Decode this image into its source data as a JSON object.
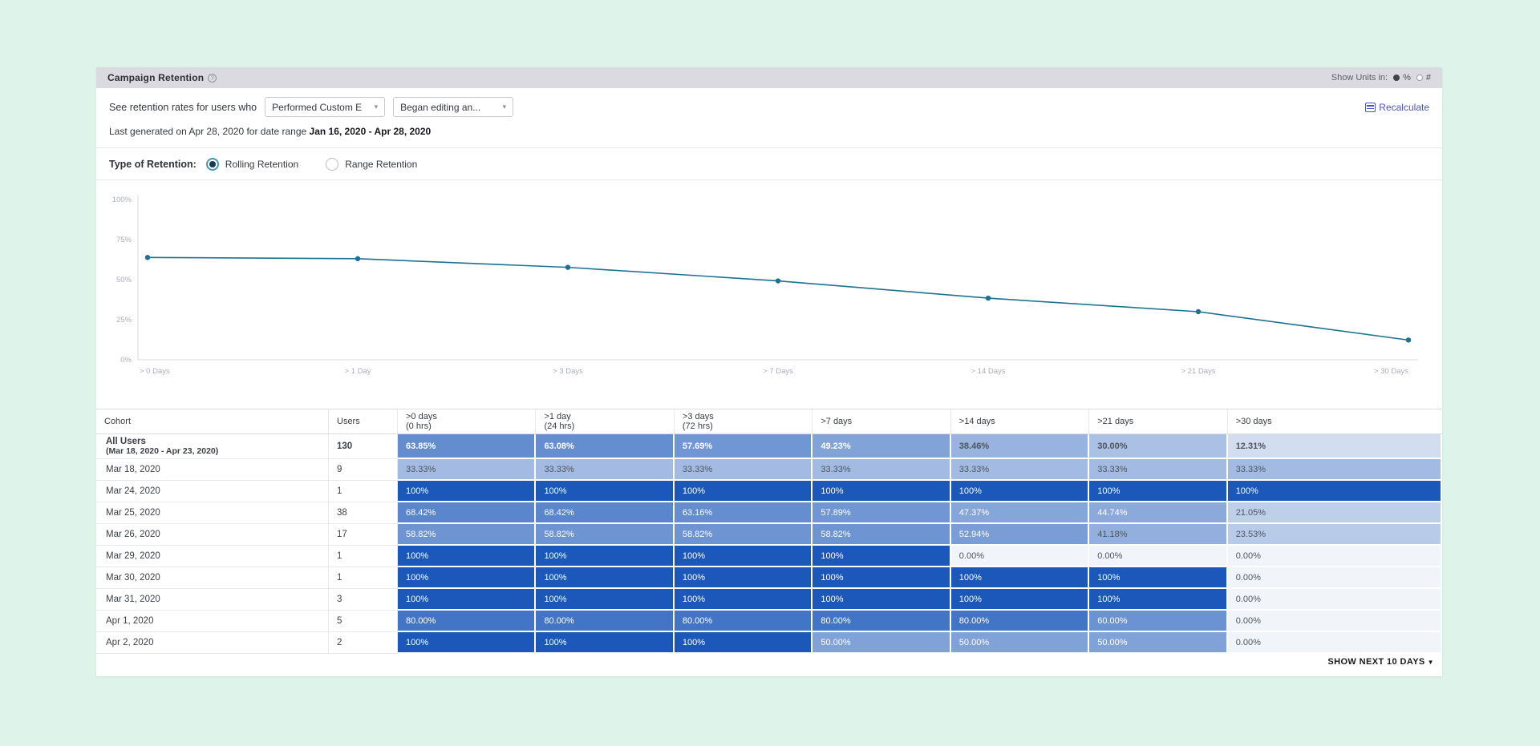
{
  "header": {
    "title": "Campaign Retention",
    "show_units_label": "Show Units in:",
    "unit_options": [
      {
        "label": "%",
        "selected": true
      },
      {
        "label": "#",
        "selected": false
      }
    ]
  },
  "filters": {
    "prefix": "See retention rates for users who",
    "dropdown1_value": "Performed Custom E",
    "dropdown2_value": "Began editing an...",
    "recalculate_label": "Recalculate",
    "last_generated_prefix": "Last generated on Apr 28, 2020 for date range",
    "date_range": "Jan 16, 2020 - Apr 28, 2020"
  },
  "retention_type": {
    "label": "Type of Retention:",
    "options": [
      {
        "label": "Rolling Retention",
        "selected": true
      },
      {
        "label": "Range Retention",
        "selected": false
      }
    ]
  },
  "chart_data": {
    "type": "line",
    "x": [
      "> 0 Days",
      "> 1 Day",
      "> 3 Days",
      "> 7 Days",
      "> 14 Days",
      "> 21 Days",
      "> 30 Days"
    ],
    "values": [
      63.85,
      63.08,
      57.69,
      49.23,
      38.46,
      30.0,
      12.31
    ],
    "title": "",
    "xlabel": "",
    "ylabel": "",
    "ylim": [
      0,
      100
    ],
    "yticks": [
      0,
      25,
      50,
      75,
      100
    ],
    "ytick_labels": [
      "0%",
      "25%",
      "50%",
      "75%",
      "100%"
    ],
    "line_color": "#1d7191",
    "axis_color": "#d8dadd",
    "tick_text_color": "#a9aeb6",
    "grid": false,
    "legend": false
  },
  "table": {
    "columns": [
      {
        "label": "Cohort",
        "sub": ""
      },
      {
        "label": "Users",
        "sub": ""
      },
      {
        "label": ">0 days",
        "sub": "(0 hrs)"
      },
      {
        "label": ">1 day",
        "sub": "(24 hrs)"
      },
      {
        "label": ">3 days",
        "sub": "(72 hrs)"
      },
      {
        "label": ">7 days",
        "sub": ""
      },
      {
        "label": ">14 days",
        "sub": ""
      },
      {
        "label": ">21 days",
        "sub": ""
      },
      {
        "label": ">30 days",
        "sub": ""
      }
    ],
    "heat_scale": {
      "low": "#f1f4f9",
      "high": "#1b58ba"
    },
    "rows": [
      {
        "cohort": "All Users",
        "cohort_sub": "(Mar 18, 2020 - Apr 23, 2020)",
        "users": "130",
        "bold": true,
        "values": [
          63.85,
          63.08,
          57.69,
          49.23,
          38.46,
          30.0,
          12.31
        ],
        "display": [
          "63.85%",
          "63.08%",
          "57.69%",
          "49.23%",
          "38.46%",
          "30.00%",
          "12.31%"
        ]
      },
      {
        "cohort": "Mar 18, 2020",
        "cohort_sub": "",
        "users": "9",
        "bold": false,
        "values": [
          33.33,
          33.33,
          33.33,
          33.33,
          33.33,
          33.33,
          33.33
        ],
        "display": [
          "33.33%",
          "33.33%",
          "33.33%",
          "33.33%",
          "33.33%",
          "33.33%",
          "33.33%"
        ]
      },
      {
        "cohort": "Mar 24, 2020",
        "cohort_sub": "",
        "users": "1",
        "bold": false,
        "values": [
          100,
          100,
          100,
          100,
          100,
          100,
          100
        ],
        "display": [
          "100%",
          "100%",
          "100%",
          "100%",
          "100%",
          "100%",
          "100%"
        ]
      },
      {
        "cohort": "Mar 25, 2020",
        "cohort_sub": "",
        "users": "38",
        "bold": false,
        "values": [
          68.42,
          68.42,
          63.16,
          57.89,
          47.37,
          44.74,
          21.05
        ],
        "display": [
          "68.42%",
          "68.42%",
          "63.16%",
          "57.89%",
          "47.37%",
          "44.74%",
          "21.05%"
        ]
      },
      {
        "cohort": "Mar 26, 2020",
        "cohort_sub": "",
        "users": "17",
        "bold": false,
        "values": [
          58.82,
          58.82,
          58.82,
          58.82,
          52.94,
          41.18,
          23.53
        ],
        "display": [
          "58.82%",
          "58.82%",
          "58.82%",
          "58.82%",
          "52.94%",
          "41.18%",
          "23.53%"
        ]
      },
      {
        "cohort": "Mar 29, 2020",
        "cohort_sub": "",
        "users": "1",
        "bold": false,
        "values": [
          100,
          100,
          100,
          100,
          0,
          0,
          0
        ],
        "display": [
          "100%",
          "100%",
          "100%",
          "100%",
          "0.00%",
          "0.00%",
          "0.00%"
        ]
      },
      {
        "cohort": "Mar 30, 2020",
        "cohort_sub": "",
        "users": "1",
        "bold": false,
        "values": [
          100,
          100,
          100,
          100,
          100,
          100,
          0
        ],
        "display": [
          "100%",
          "100%",
          "100%",
          "100%",
          "100%",
          "100%",
          "0.00%"
        ]
      },
      {
        "cohort": "Mar 31, 2020",
        "cohort_sub": "",
        "users": "3",
        "bold": false,
        "values": [
          100,
          100,
          100,
          100,
          100,
          100,
          0
        ],
        "display": [
          "100%",
          "100%",
          "100%",
          "100%",
          "100%",
          "100%",
          "0.00%"
        ]
      },
      {
        "cohort": "Apr 1, 2020",
        "cohort_sub": "",
        "users": "5",
        "bold": false,
        "values": [
          80,
          80,
          80,
          80,
          80,
          60,
          0
        ],
        "display": [
          "80.00%",
          "80.00%",
          "80.00%",
          "80.00%",
          "80.00%",
          "60.00%",
          "0.00%"
        ]
      },
      {
        "cohort": "Apr 2, 2020",
        "cohort_sub": "",
        "users": "2",
        "bold": false,
        "values": [
          100,
          100,
          100,
          50,
          50,
          50,
          0
        ],
        "display": [
          "100%",
          "100%",
          "100%",
          "50.00%",
          "50.00%",
          "50.00%",
          "0.00%"
        ]
      }
    ],
    "footer_label": "SHOW NEXT 10 DAYS"
  }
}
